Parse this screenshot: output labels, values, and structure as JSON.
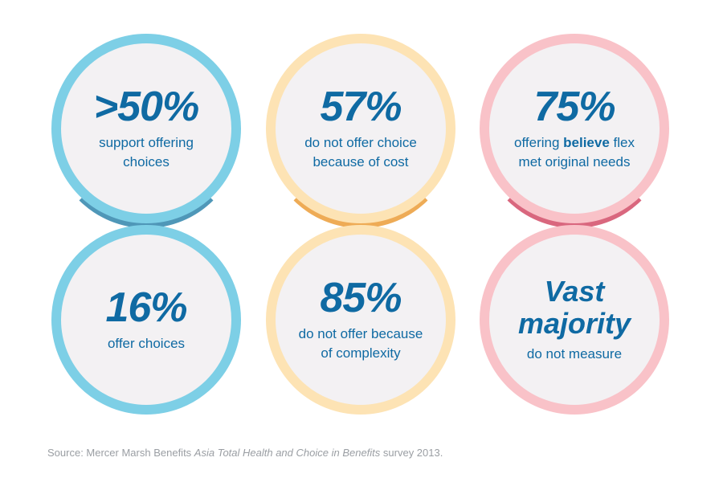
{
  "stats": [
    {
      "value": ">50%",
      "desc": "support offering choices"
    },
    {
      "value": "57%",
      "desc": "do not offer choice because of cost"
    },
    {
      "value": "75%",
      "desc_before": "offering ",
      "desc_bold": "believe",
      "desc_after": " flex met original needs"
    },
    {
      "value": "16%",
      "desc": "offer choices"
    },
    {
      "value": "85%",
      "desc": "do not offer because of complexity"
    },
    {
      "value": "Vast majority",
      "desc": "do not measure"
    }
  ],
  "source": {
    "prefix": "Source: Mercer Marsh Benefits ",
    "italic": "Asia Total Health and Choice in Benefits",
    "suffix": " survey 2013."
  },
  "colors": {
    "blue_ring": "#7dcfe6",
    "peach_ring": "#fde3b4",
    "pink_ring": "#f9c2c8",
    "text": "#0f6aa3"
  }
}
